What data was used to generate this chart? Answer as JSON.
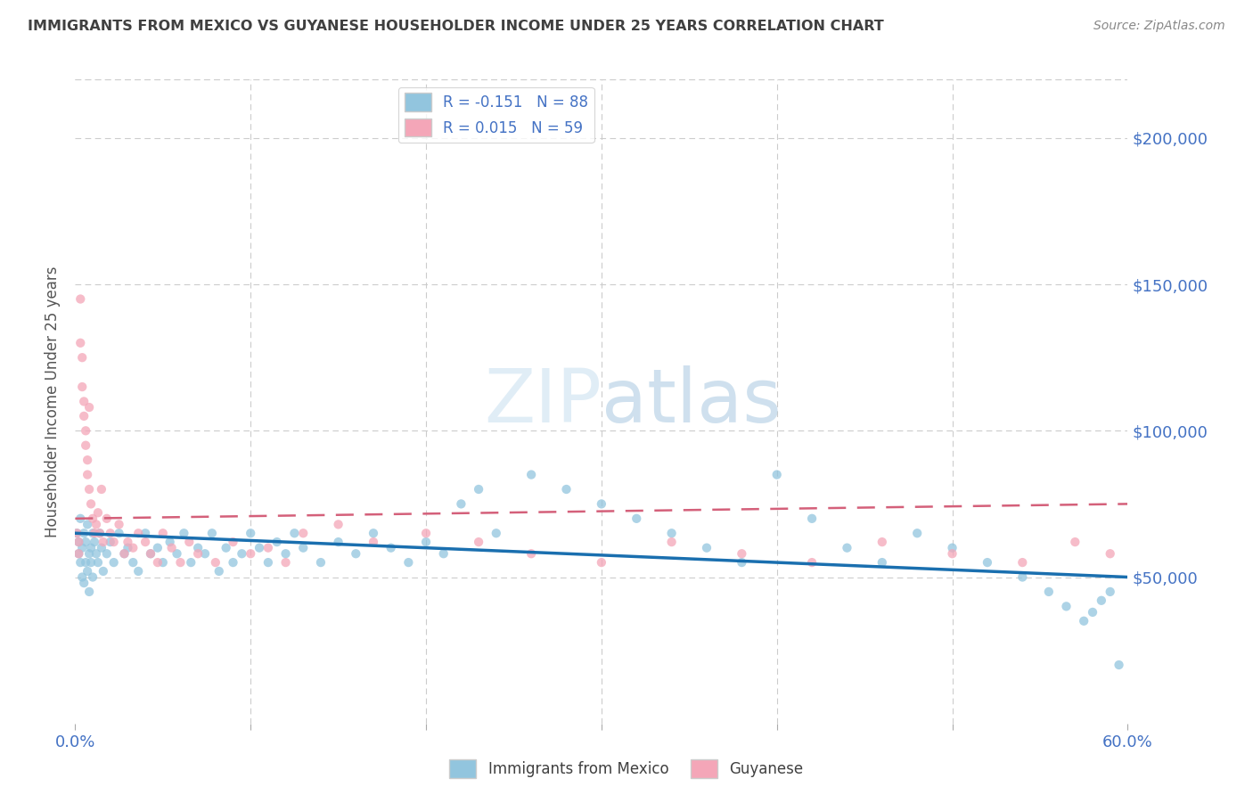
{
  "title": "IMMIGRANTS FROM MEXICO VS GUYANESE HOUSEHOLDER INCOME UNDER 25 YEARS CORRELATION CHART",
  "source": "Source: ZipAtlas.com",
  "ylabel": "Householder Income Under 25 years",
  "xlim": [
    0.0,
    0.6
  ],
  "ylim": [
    0,
    220000
  ],
  "yticks": [
    0,
    50000,
    100000,
    150000,
    200000
  ],
  "ytick_labels": [
    "",
    "$50,000",
    "$100,000",
    "$150,000",
    "$200,000"
  ],
  "xtick_pos": [
    0.0,
    0.1,
    0.2,
    0.3,
    0.4,
    0.5,
    0.6
  ],
  "xtick_labels": [
    "0.0%",
    "",
    "",
    "",
    "",
    "",
    "60.0%"
  ],
  "series1_label": "Immigrants from Mexico",
  "series2_label": "Guyanese",
  "blue_color": "#92c5de",
  "pink_color": "#f4a6b8",
  "line_blue": "#1a6faf",
  "line_pink": "#d4607a",
  "axis_color": "#4472c4",
  "title_color": "#404040",
  "background": "#ffffff",
  "R_mexico": -0.151,
  "R_guyanese": 0.015,
  "N_mexico": 88,
  "N_guyanese": 59,
  "mexico_x": [
    0.001,
    0.002,
    0.002,
    0.003,
    0.003,
    0.004,
    0.004,
    0.005,
    0.005,
    0.006,
    0.006,
    0.007,
    0.007,
    0.008,
    0.008,
    0.009,
    0.009,
    0.01,
    0.01,
    0.011,
    0.012,
    0.013,
    0.014,
    0.015,
    0.016,
    0.018,
    0.02,
    0.022,
    0.025,
    0.028,
    0.03,
    0.033,
    0.036,
    0.04,
    0.043,
    0.047,
    0.05,
    0.054,
    0.058,
    0.062,
    0.066,
    0.07,
    0.074,
    0.078,
    0.082,
    0.086,
    0.09,
    0.095,
    0.1,
    0.105,
    0.11,
    0.115,
    0.12,
    0.125,
    0.13,
    0.14,
    0.15,
    0.16,
    0.17,
    0.18,
    0.19,
    0.2,
    0.21,
    0.22,
    0.23,
    0.24,
    0.26,
    0.28,
    0.3,
    0.32,
    0.34,
    0.36,
    0.38,
    0.4,
    0.42,
    0.44,
    0.46,
    0.48,
    0.5,
    0.52,
    0.54,
    0.555,
    0.565,
    0.575,
    0.58,
    0.585,
    0.59,
    0.595
  ],
  "mexico_y": [
    65000,
    62000,
    58000,
    70000,
    55000,
    60000,
    50000,
    65000,
    48000,
    62000,
    55000,
    68000,
    52000,
    58000,
    45000,
    60000,
    55000,
    65000,
    50000,
    62000,
    58000,
    55000,
    65000,
    60000,
    52000,
    58000,
    62000,
    55000,
    65000,
    58000,
    60000,
    55000,
    52000,
    65000,
    58000,
    60000,
    55000,
    62000,
    58000,
    65000,
    55000,
    60000,
    58000,
    65000,
    52000,
    60000,
    55000,
    58000,
    65000,
    60000,
    55000,
    62000,
    58000,
    65000,
    60000,
    55000,
    62000,
    58000,
    65000,
    60000,
    55000,
    62000,
    58000,
    75000,
    80000,
    65000,
    85000,
    80000,
    75000,
    70000,
    65000,
    60000,
    55000,
    85000,
    70000,
    60000,
    55000,
    65000,
    60000,
    55000,
    50000,
    45000,
    40000,
    35000,
    38000,
    42000,
    45000,
    20000
  ],
  "guyanese_x": [
    0.001,
    0.002,
    0.002,
    0.003,
    0.003,
    0.004,
    0.004,
    0.005,
    0.005,
    0.006,
    0.006,
    0.007,
    0.007,
    0.008,
    0.008,
    0.009,
    0.01,
    0.011,
    0.012,
    0.013,
    0.014,
    0.015,
    0.016,
    0.018,
    0.02,
    0.022,
    0.025,
    0.028,
    0.03,
    0.033,
    0.036,
    0.04,
    0.043,
    0.047,
    0.05,
    0.055,
    0.06,
    0.065,
    0.07,
    0.08,
    0.09,
    0.1,
    0.11,
    0.12,
    0.13,
    0.15,
    0.17,
    0.2,
    0.23,
    0.26,
    0.3,
    0.34,
    0.38,
    0.42,
    0.46,
    0.5,
    0.54,
    0.57,
    0.59
  ],
  "guyanese_y": [
    65000,
    62000,
    58000,
    145000,
    130000,
    125000,
    115000,
    110000,
    105000,
    100000,
    95000,
    90000,
    85000,
    80000,
    108000,
    75000,
    70000,
    65000,
    68000,
    72000,
    65000,
    80000,
    62000,
    70000,
    65000,
    62000,
    68000,
    58000,
    62000,
    60000,
    65000,
    62000,
    58000,
    55000,
    65000,
    60000,
    55000,
    62000,
    58000,
    55000,
    62000,
    58000,
    60000,
    55000,
    65000,
    68000,
    62000,
    65000,
    62000,
    58000,
    55000,
    62000,
    58000,
    55000,
    62000,
    58000,
    55000,
    62000,
    58000
  ]
}
